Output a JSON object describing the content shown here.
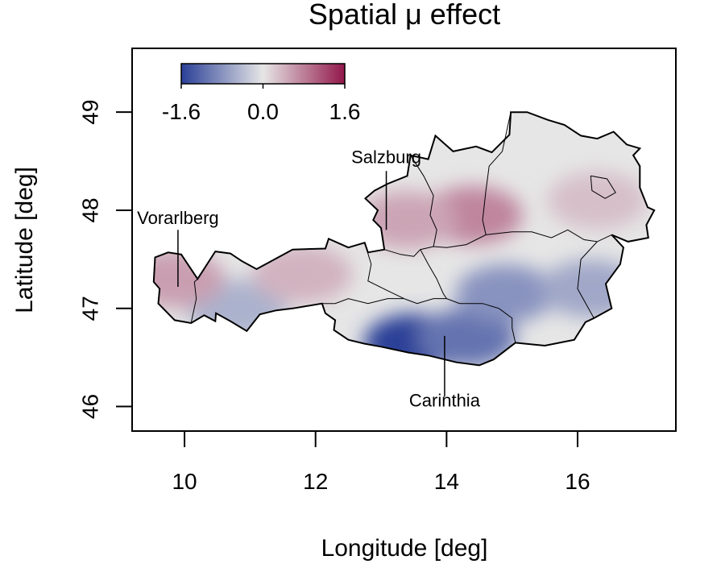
{
  "chart_data": {
    "type": "heatmap",
    "title": "Spatial μ effect",
    "xlabel": "Longitude [deg]",
    "ylabel": "Latitude [deg]",
    "xlim": [
      9.2,
      17.5
    ],
    "ylim": [
      45.75,
      49.65
    ],
    "x_ticks": [
      "10",
      "12",
      "14",
      "16"
    ],
    "y_ticks": [
      "46",
      "47",
      "48",
      "49"
    ],
    "colorbar": {
      "min": -1.6,
      "max": 1.6,
      "ticks": [
        "-1.6",
        "0.0",
        "1.6"
      ],
      "colors": [
        "#2a3f97",
        "#e6e6e6",
        "#92174a"
      ]
    },
    "effect_field": [
      {
        "lon": 13.5,
        "lat": 46.65,
        "value": -1.6
      },
      {
        "lon": 14.3,
        "lat": 46.7,
        "value": -1.1
      },
      {
        "lon": 14.9,
        "lat": 47.15,
        "value": -0.8
      },
      {
        "lon": 16.2,
        "lat": 47.2,
        "value": -0.6
      },
      {
        "lon": 10.8,
        "lat": 47.0,
        "value": -0.5
      },
      {
        "lon": 14.4,
        "lat": 47.95,
        "value": 0.75
      },
      {
        "lon": 13.4,
        "lat": 47.9,
        "value": 0.5
      },
      {
        "lon": 11.8,
        "lat": 47.35,
        "value": 0.4
      },
      {
        "lon": 9.85,
        "lat": 47.3,
        "value": 0.55
      },
      {
        "lon": 16.3,
        "lat": 48.1,
        "value": 0.3
      }
    ],
    "annotations": [
      {
        "label": "Salzburg",
        "x": 13.08,
        "y_label": 48.48,
        "y_line": [
          48.4,
          47.8
        ]
      },
      {
        "label": "Vorarlberg",
        "x": 9.9,
        "y_label": 47.86,
        "y_line": [
          47.8,
          47.22
        ]
      },
      {
        "label": "Carinthia",
        "x": 13.97,
        "y_label": 46.0,
        "y_line": [
          46.1,
          46.72
        ]
      }
    ],
    "boundary": [
      [
        9.53,
        47.27
      ],
      [
        9.62,
        47.2
      ],
      [
        9.6,
        47.05
      ],
      [
        9.85,
        46.88
      ],
      [
        10.1,
        46.85
      ],
      [
        10.3,
        46.93
      ],
      [
        10.47,
        46.87
      ],
      [
        10.48,
        46.95
      ],
      [
        10.7,
        46.87
      ],
      [
        10.95,
        46.77
      ],
      [
        11.15,
        46.94
      ],
      [
        11.4,
        46.98
      ],
      [
        11.65,
        47.0
      ],
      [
        12.1,
        47.05
      ],
      [
        12.15,
        46.95
      ],
      [
        12.3,
        46.88
      ],
      [
        12.28,
        46.78
      ],
      [
        12.5,
        46.68
      ],
      [
        12.75,
        46.64
      ],
      [
        13.0,
        46.61
      ],
      [
        13.42,
        46.55
      ],
      [
        13.72,
        46.52
      ],
      [
        14.15,
        46.45
      ],
      [
        14.5,
        46.42
      ],
      [
        14.72,
        46.48
      ],
      [
        15.05,
        46.65
      ],
      [
        15.5,
        46.62
      ],
      [
        15.95,
        46.68
      ],
      [
        16.12,
        46.86
      ],
      [
        16.25,
        46.9
      ],
      [
        16.52,
        47.0
      ],
      [
        16.43,
        47.25
      ],
      [
        16.65,
        47.45
      ],
      [
        16.7,
        47.62
      ],
      [
        16.52,
        47.75
      ],
      [
        16.77,
        47.68
      ],
      [
        17.08,
        47.72
      ],
      [
        17.05,
        47.85
      ],
      [
        17.17,
        48.0
      ],
      [
        17.07,
        48.03
      ],
      [
        16.95,
        48.23
      ],
      [
        16.95,
        48.45
      ],
      [
        16.85,
        48.56
      ],
      [
        16.95,
        48.63
      ],
      [
        16.75,
        48.67
      ],
      [
        16.55,
        48.8
      ],
      [
        16.3,
        48.73
      ],
      [
        16.05,
        48.76
      ],
      [
        15.8,
        48.87
      ],
      [
        15.55,
        48.92
      ],
      [
        15.23,
        49.0
      ],
      [
        14.98,
        49.0
      ],
      [
        14.96,
        48.77
      ],
      [
        14.69,
        48.59
      ],
      [
        14.45,
        48.65
      ],
      [
        14.1,
        48.6
      ],
      [
        13.83,
        48.76
      ],
      [
        13.72,
        48.52
      ],
      [
        13.45,
        48.56
      ],
      [
        13.4,
        48.35
      ],
      [
        13.1,
        48.27
      ],
      [
        12.9,
        48.2
      ],
      [
        12.76,
        48.12
      ],
      [
        12.95,
        48.0
      ],
      [
        12.88,
        47.9
      ],
      [
        13.0,
        47.82
      ],
      [
        13.05,
        47.6
      ],
      [
        12.8,
        47.57
      ],
      [
        12.75,
        47.67
      ],
      [
        12.5,
        47.62
      ],
      [
        12.2,
        47.71
      ],
      [
        12.15,
        47.61
      ],
      [
        11.65,
        47.6
      ],
      [
        11.1,
        47.4
      ],
      [
        10.88,
        47.48
      ],
      [
        10.7,
        47.56
      ],
      [
        10.47,
        47.58
      ],
      [
        10.2,
        47.3
      ],
      [
        9.95,
        47.55
      ],
      [
        9.75,
        47.57
      ],
      [
        9.55,
        47.52
      ],
      [
        9.53,
        47.27
      ]
    ],
    "state_borders": [
      [
        [
          10.1,
          46.85
        ],
        [
          10.18,
          47.1
        ],
        [
          10.15,
          47.27
        ],
        [
          10.2,
          47.3
        ]
      ],
      [
        [
          12.15,
          46.95
        ],
        [
          12.1,
          47.05
        ],
        [
          12.3,
          47.05
        ],
        [
          12.5,
          47.1
        ],
        [
          12.8,
          47.05
        ],
        [
          13.1,
          47.1
        ],
        [
          13.35,
          47.1
        ],
        [
          13.55,
          47.05
        ],
        [
          13.8,
          47.1
        ],
        [
          14.0,
          47.1
        ],
        [
          14.2,
          47.05
        ],
        [
          14.55,
          47.05
        ],
        [
          14.8,
          47.0
        ],
        [
          15.0,
          46.9
        ],
        [
          15.0,
          46.8
        ],
        [
          15.05,
          46.65
        ]
      ],
      [
        [
          12.75,
          47.67
        ],
        [
          12.85,
          47.45
        ],
        [
          12.8,
          47.28
        ],
        [
          13.1,
          47.18
        ],
        [
          13.35,
          47.1
        ]
      ],
      [
        [
          13.05,
          47.6
        ],
        [
          13.3,
          47.55
        ],
        [
          13.5,
          47.53
        ],
        [
          13.6,
          47.6
        ],
        [
          13.8,
          47.63
        ],
        [
          14.0,
          47.62
        ],
        [
          14.3,
          47.65
        ],
        [
          14.6,
          47.75
        ],
        [
          15.0,
          47.78
        ],
        [
          15.3,
          47.78
        ],
        [
          15.6,
          47.72
        ],
        [
          15.85,
          47.8
        ],
        [
          16.1,
          47.7
        ],
        [
          16.3,
          47.68
        ],
        [
          16.52,
          47.75
        ]
      ],
      [
        [
          13.6,
          47.6
        ],
        [
          13.72,
          47.45
        ],
        [
          13.85,
          47.3
        ],
        [
          13.95,
          47.15
        ],
        [
          14.0,
          47.1
        ]
      ],
      [
        [
          14.98,
          49.0
        ],
        [
          14.85,
          48.6
        ],
        [
          14.65,
          48.45
        ],
        [
          14.6,
          48.2
        ],
        [
          14.55,
          47.9
        ],
        [
          14.6,
          47.75
        ]
      ],
      [
        [
          16.25,
          46.9
        ],
        [
          16.0,
          47.2
        ],
        [
          16.05,
          47.5
        ],
        [
          16.3,
          47.68
        ]
      ],
      [
        [
          16.2,
          48.35
        ],
        [
          16.45,
          48.32
        ],
        [
          16.58,
          48.18
        ],
        [
          16.42,
          48.12
        ],
        [
          16.22,
          48.2
        ],
        [
          16.2,
          48.35
        ]
      ],
      [
        [
          13.45,
          48.56
        ],
        [
          13.65,
          48.35
        ],
        [
          13.8,
          48.15
        ],
        [
          13.75,
          47.95
        ],
        [
          13.85,
          47.8
        ],
        [
          13.8,
          47.63
        ]
      ]
    ]
  }
}
